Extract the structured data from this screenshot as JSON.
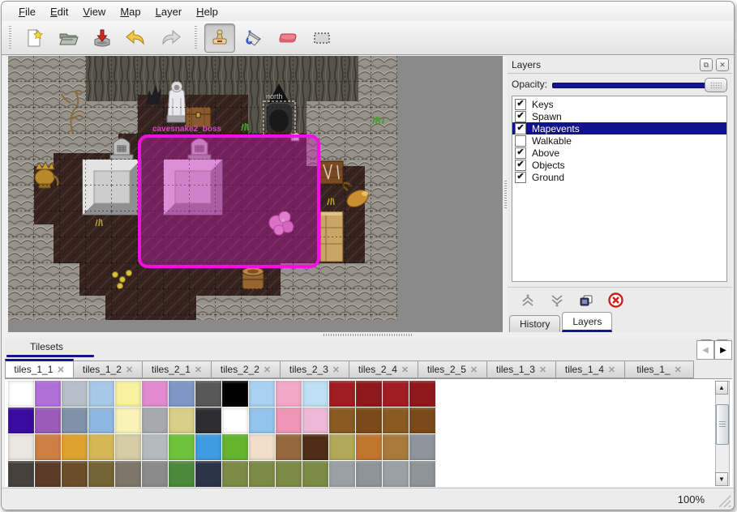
{
  "menu": {
    "items": [
      {
        "label": "File"
      },
      {
        "label": "Edit"
      },
      {
        "label": "View"
      },
      {
        "label": "Map"
      },
      {
        "label": "Layer"
      },
      {
        "label": "Help"
      }
    ]
  },
  "toolbar": {
    "buttons": [
      {
        "name": "new-file",
        "active": false
      },
      {
        "name": "open-file",
        "active": false
      },
      {
        "name": "save-file",
        "active": false
      },
      {
        "name": "undo",
        "active": false
      },
      {
        "name": "redo",
        "active": false
      },
      {
        "name": "stamp-tool",
        "active": true
      },
      {
        "name": "fill-tool",
        "active": false
      },
      {
        "name": "eraser-tool",
        "active": false
      },
      {
        "name": "rect-select-tool",
        "active": false
      }
    ]
  },
  "map": {
    "north_label": "north",
    "event_label": "cavesnake2_boss",
    "selection_color": "#ff10e0",
    "grid_size": 32
  },
  "layers_panel": {
    "title": "Layers",
    "opacity_label": "Opacity:",
    "opacity_value": 100,
    "layers": [
      {
        "label": "Keys",
        "checked": true,
        "selected": false
      },
      {
        "label": "Spawn",
        "checked": true,
        "selected": false
      },
      {
        "label": "Mapevents",
        "checked": true,
        "selected": true
      },
      {
        "label": "Walkable",
        "checked": false,
        "selected": false
      },
      {
        "label": "Above",
        "checked": true,
        "selected": false
      },
      {
        "label": "Objects",
        "checked": true,
        "selected": false
      },
      {
        "label": "Ground",
        "checked": true,
        "selected": false
      }
    ],
    "buttons": [
      "move-layer-up",
      "move-layer-down",
      "duplicate-layer",
      "delete-layer"
    ],
    "tabs": [
      {
        "label": "History",
        "active": false
      },
      {
        "label": "Layers",
        "active": true
      }
    ]
  },
  "tilesets_panel": {
    "title": "Tilesets",
    "tabs": [
      {
        "label": "tiles_1_1",
        "active": true
      },
      {
        "label": "tiles_1_2",
        "active": false
      },
      {
        "label": "tiles_2_1",
        "active": false
      },
      {
        "label": "tiles_2_2",
        "active": false
      },
      {
        "label": "tiles_2_3",
        "active": false
      },
      {
        "label": "tiles_2_4",
        "active": false
      },
      {
        "label": "tiles_2_5",
        "active": false
      },
      {
        "label": "tiles_1_3",
        "active": false
      },
      {
        "label": "tiles_1_4",
        "active": false
      },
      {
        "label": "tiles_1_",
        "active": false
      }
    ],
    "tile_grid": [
      [
        "#ffffff",
        "#b070d8",
        "#b7bfc9",
        "#a8c8e8",
        "#f8f2a0",
        "#e38ad0",
        "#8097c5",
        "#585858",
        "#000000",
        "#a9d2f2",
        "#f2a8c8",
        "#bfdff5",
        "#a01d22",
        "#8f181c",
        "#a01d22",
        "#8f181c"
      ],
      [
        "#3a0b9e",
        "#9a5cb8",
        "#7f92a8",
        "#8fb8e0",
        "#faf3b8",
        "#a8a8b0",
        "#d8cf88",
        "#2e2e30",
        "#ffffff",
        "#92c4ee",
        "#f095b5",
        "#f0b8d8",
        "#8a5a22",
        "#7a4a1a",
        "#8a5a22",
        "#7a4a1a"
      ],
      [
        "#e9e7df",
        "#cd7f44",
        "#dda32e",
        "#d6b755",
        "#d6cda6",
        "#b4bac0",
        "#6fc33a",
        "#3f9ce0",
        "#64b52e",
        "#f2dfcb",
        "#96683e",
        "#4f2d16",
        "#b2a85a",
        "#c1762e",
        "#a87a3c",
        "#8e959c"
      ],
      [
        "#46413c",
        "#5b3a28",
        "#6b4d2a",
        "#756435",
        "#7d7669",
        "#8b8b8b",
        "#4b8a3a",
        "#2b3448",
        "#7d8a45",
        "#7d8a45",
        "#7d8a45",
        "#7d8a45",
        "#9aa0a4",
        "#8f9498",
        "#9aa0a4",
        "#8f9498"
      ]
    ]
  },
  "status_bar": {
    "zoom": "100%"
  }
}
